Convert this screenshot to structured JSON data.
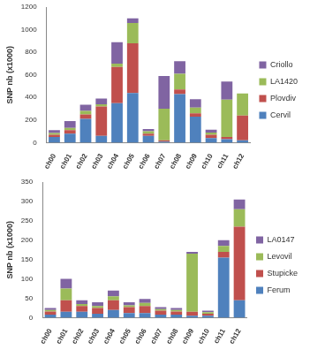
{
  "chart_data": [
    {
      "type": "bar",
      "stacked": true,
      "grid": false,
      "legend": "right",
      "y_label": "SNP nb (x1000)",
      "categories": [
        "ch00",
        "ch01",
        "ch02",
        "ch03",
        "ch04",
        "ch05",
        "ch06",
        "ch07",
        "ch08",
        "ch09",
        "ch10",
        "ch11",
        "ch12"
      ],
      "ylim": [
        0,
        1200
      ],
      "yticks": [
        0,
        200,
        400,
        600,
        800,
        1000,
        1200
      ],
      "series": [
        {
          "name": "Cervil",
          "color": "#4F81BD",
          "values": [
            50,
            80,
            210,
            60,
            350,
            440,
            60,
            10,
            430,
            230,
            40,
            30,
            20
          ]
        },
        {
          "name": "Plovdiv",
          "color": "#C0504D",
          "values": [
            20,
            30,
            40,
            260,
            320,
            440,
            20,
            10,
            40,
            30,
            30,
            20,
            220
          ]
        },
        {
          "name": "LA1420",
          "color": "#9BBB59",
          "values": [
            15,
            20,
            30,
            20,
            30,
            180,
            20,
            280,
            140,
            50,
            20,
            330,
            195
          ]
        },
        {
          "name": "Criollo",
          "color": "#8064A2",
          "values": [
            25,
            60,
            55,
            50,
            190,
            40,
            20,
            290,
            110,
            75,
            25,
            160,
            0
          ]
        }
      ]
    },
    {
      "type": "bar",
      "stacked": true,
      "grid": false,
      "legend": "right",
      "y_label": "SNP nb (x1000)",
      "categories": [
        "ch00",
        "ch01",
        "ch02",
        "ch03",
        "ch04",
        "ch05",
        "ch06",
        "ch07",
        "ch08",
        "ch09",
        "ch10",
        "ch11",
        "ch12"
      ],
      "ylim": [
        0,
        350
      ],
      "yticks": [
        0,
        50,
        100,
        150,
        200,
        250,
        300,
        350
      ],
      "series": [
        {
          "name": "Ferum",
          "color": "#4F81BD",
          "values": [
            8,
            15,
            15,
            10,
            20,
            12,
            12,
            8,
            8,
            5,
            5,
            155,
            45
          ]
        },
        {
          "name": "Stupicke",
          "color": "#C0504D",
          "values": [
            8,
            30,
            15,
            15,
            25,
            15,
            18,
            10,
            8,
            10,
            5,
            15,
            190
          ]
        },
        {
          "name": "Levovil",
          "color": "#9BBB59",
          "values": [
            4,
            30,
            5,
            5,
            10,
            5,
            8,
            4,
            4,
            150,
            4,
            15,
            45
          ]
        },
        {
          "name": "LA0147",
          "color": "#8064A2",
          "values": [
            5,
            25,
            10,
            10,
            15,
            8,
            10,
            5,
            5,
            5,
            4,
            15,
            25
          ]
        }
      ]
    }
  ]
}
